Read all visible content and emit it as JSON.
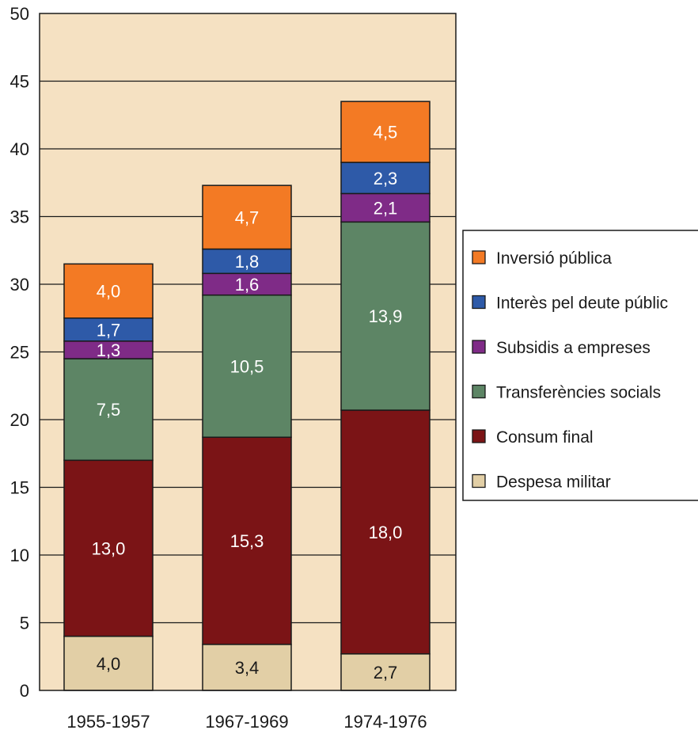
{
  "chart_data": {
    "type": "bar",
    "stacked": true,
    "categories": [
      "1955-1957",
      "1967-1969",
      "1974-1976"
    ],
    "series": [
      {
        "name": "Despesa militar",
        "values": [
          4.0,
          3.4,
          2.7
        ],
        "labels": [
          "4,0",
          "3,4",
          "2,7"
        ],
        "color": "#e2cfa6",
        "label_color": "#1a1a1a"
      },
      {
        "name": "Consum final",
        "values": [
          13.0,
          15.3,
          18.0
        ],
        "labels": [
          "13,0",
          "15,3",
          "18,0"
        ],
        "color": "#7b1416",
        "label_color": "#ffffff"
      },
      {
        "name": "Transferències socials",
        "values": [
          7.5,
          10.5,
          13.9
        ],
        "labels": [
          "7,5",
          "10,5",
          "13,9"
        ],
        "color": "#5d8565",
        "label_color": "#ffffff"
      },
      {
        "name": "Subsidis a empreses",
        "values": [
          1.3,
          1.6,
          2.1
        ],
        "labels": [
          "1,3",
          "1,6",
          "2,1"
        ],
        "color": "#7f2b87",
        "label_color": "#ffffff"
      },
      {
        "name": "Interès pel deute públic",
        "values": [
          1.7,
          1.8,
          2.3
        ],
        "labels": [
          "1,7",
          "1,8",
          "2,3"
        ],
        "color": "#2e5aa8",
        "label_color": "#ffffff"
      },
      {
        "name": "Inversió pública",
        "values": [
          4.0,
          4.7,
          4.5
        ],
        "labels": [
          "4,0",
          "4,7",
          "4,5"
        ],
        "color": "#f37a24",
        "label_color": "#ffffff"
      }
    ],
    "ylim": [
      0,
      50
    ],
    "yticks": [
      0,
      5,
      10,
      15,
      20,
      25,
      30,
      35,
      40,
      45,
      50
    ],
    "grid": true,
    "legend_position": "right",
    "legend_order": [
      "Inversió pública",
      "Interès pel deute públic",
      "Subsidis a empreses",
      "Transferències socials",
      "Consum final",
      "Despesa militar"
    ],
    "plot_background": "#f5e1c2"
  }
}
